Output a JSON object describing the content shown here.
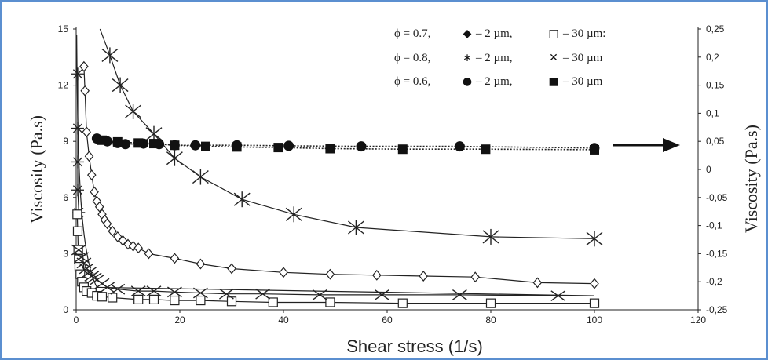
{
  "chart_data": {
    "type": "scatter",
    "xlabel": "Shear stress (1/s)",
    "ylabel_left": "Viscosity (Pa.s)",
    "ylabel_right": "Viscosity (Pa.s)",
    "xlim": [
      0,
      120
    ],
    "ylim_left": [
      0,
      15
    ],
    "ylim_right": [
      -0.25,
      0.25
    ],
    "x_ticks": [
      "0",
      "20",
      "40",
      "60",
      "80",
      "100",
      "120"
    ],
    "y_left_ticks": [
      "0",
      "3",
      "6",
      "9",
      "12",
      "15"
    ],
    "y_right_ticks": [
      "0,25",
      "0,2",
      "0,15",
      "0,1",
      "0,05",
      "0",
      "-0,05",
      "-0,1",
      "-0,15",
      "-0,2",
      "-0,25"
    ],
    "legend": [
      {
        "phi": "ϕ = 0.7,",
        "a_sym": "◆",
        "a_txt": "– 2 µm,",
        "b_sym": "□",
        "b_txt": "– 30 µm:"
      },
      {
        "phi": "ϕ = 0.8,",
        "a_sym": "∗",
        "a_txt": "– 2 µm,",
        "b_sym": "✕",
        "b_txt": "– 30 µm"
      },
      {
        "phi": "ϕ = 0.6,",
        "a_sym": "●",
        "a_txt": "– 2 µm,",
        "b_sym": "■",
        "b_txt": "– 30 µm"
      }
    ],
    "series": [
      {
        "marker": "open-diamond",
        "axis": "left",
        "line": "solid",
        "x": [
          1.5,
          1.7,
          2.0,
          2.5,
          3.0,
          3.5,
          4.0,
          4.5,
          5.0,
          5.5,
          6.0,
          7.0,
          8.0,
          9.0,
          10.0,
          11.0,
          12.0,
          14.0,
          19.0,
          24.0,
          30.0,
          40.0,
          49.0,
          58.0,
          67.0,
          77.0,
          89.0,
          100.0
        ],
        "y": [
          13.0,
          11.7,
          9.5,
          8.2,
          7.2,
          6.3,
          5.8,
          5.5,
          5.1,
          4.8,
          4.6,
          4.2,
          3.9,
          3.7,
          3.5,
          3.4,
          3.3,
          3.0,
          2.75,
          2.45,
          2.2,
          2.0,
          1.9,
          1.85,
          1.8,
          1.75,
          1.45,
          1.4
        ]
      },
      {
        "marker": "asterisk",
        "axis": "left",
        "line": "solid",
        "x": [
          6.5,
          8.5,
          11,
          15,
          19,
          24,
          32,
          42,
          54,
          80,
          100
        ],
        "y": [
          13.6,
          12.0,
          10.6,
          9.4,
          8.1,
          7.1,
          5.9,
          5.1,
          4.4,
          3.9,
          3.8
        ]
      },
      {
        "marker": "star",
        "axis": "left",
        "line": "solid",
        "x": [
          0.3,
          0.3,
          0.3,
          0.3,
          0.5
        ],
        "y": [
          12.6,
          9.7,
          7.9,
          6.4,
          5.2
        ]
      },
      {
        "marker": "open-square",
        "axis": "left",
        "line": "solid",
        "x": [
          0.2,
          0.3,
          0.4,
          0.5,
          0.6,
          0.8,
          1.1,
          1.5,
          2,
          3,
          4,
          5,
          7,
          12,
          15,
          19,
          24,
          30,
          38,
          49,
          63,
          80,
          100
        ],
        "y": [
          5.1,
          4.2,
          3.2,
          2.7,
          2.3,
          1.9,
          1.5,
          1.2,
          1.0,
          0.9,
          0.75,
          0.7,
          0.65,
          0.55,
          0.55,
          0.5,
          0.5,
          0.45,
          0.4,
          0.4,
          0.35,
          0.35,
          0.35
        ]
      },
      {
        "marker": "cross",
        "axis": "left",
        "line": "solid",
        "x": [
          0.5,
          1,
          1.5,
          2,
          2.5,
          3,
          3.5,
          4,
          5,
          6,
          8,
          12,
          15,
          19,
          24,
          29,
          36,
          47,
          59,
          74,
          93
        ],
        "y": [
          3.2,
          2.8,
          2.5,
          2.2,
          2.0,
          1.8,
          1.7,
          1.6,
          1.4,
          1.2,
          1.1,
          1.0,
          1.0,
          0.95,
          0.9,
          0.85,
          0.85,
          0.8,
          0.8,
          0.8,
          0.75
        ]
      },
      {
        "marker": "filled-circle",
        "axis": "right",
        "line": "dotted",
        "x": [
          4,
          6,
          8,
          9.5,
          13,
          16,
          19,
          23,
          31,
          41,
          55,
          74,
          100
        ],
        "y": [
          0.055,
          0.05,
          0.047,
          0.045,
          0.046,
          0.045,
          0.043,
          0.043,
          0.043,
          0.042,
          0.041,
          0.041,
          0.038
        ]
      },
      {
        "marker": "filled-square",
        "axis": "right",
        "line": "dotted",
        "x": [
          5,
          8,
          12,
          15,
          19,
          25,
          31,
          39,
          49,
          63,
          79,
          100
        ],
        "y": [
          0.052,
          0.049,
          0.047,
          0.046,
          0.043,
          0.041,
          0.04,
          0.039,
          0.037,
          0.036,
          0.036,
          0.035
        ]
      }
    ]
  }
}
